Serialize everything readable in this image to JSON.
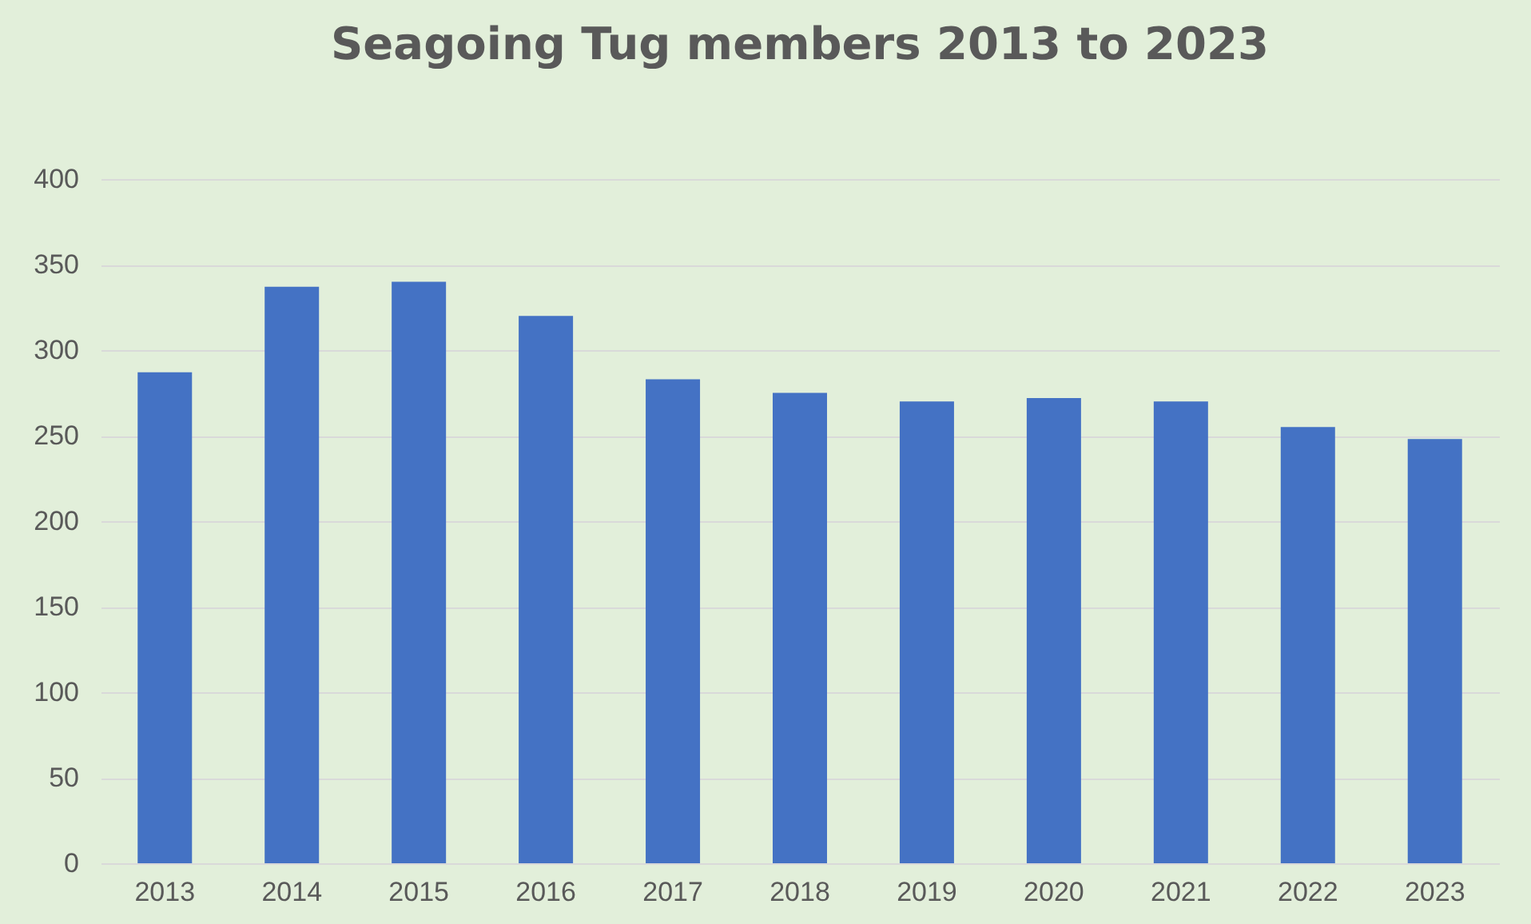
{
  "chart_data": {
    "type": "bar",
    "title": "Seagoing Tug members 2013 to 2023",
    "categories": [
      "2013",
      "2014",
      "2015",
      "2016",
      "2017",
      "2018",
      "2019",
      "2020",
      "2021",
      "2022",
      "2023"
    ],
    "values": [
      287,
      337,
      340,
      320,
      283,
      275,
      270,
      272,
      270,
      255,
      248
    ],
    "color": "#4472c4",
    "ylim": [
      0,
      400
    ],
    "yticks": [
      0,
      50,
      100,
      150,
      200,
      250,
      300,
      350,
      400
    ],
    "grid": "y"
  }
}
